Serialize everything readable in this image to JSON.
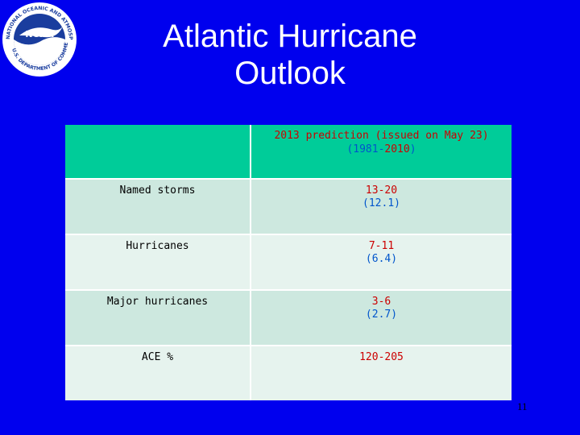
{
  "title": {
    "line1": "Atlantic Hurricane",
    "line2": "Outlook"
  },
  "logo": {
    "name": "noaa-logo",
    "ring_text": "NATIONAL OCEANIC AND ATMOSPHERIC ADMINISTRATION",
    "bottom_text": "U.S. DEPARTMENT OF COMMERCE",
    "center_text": "NOAA"
  },
  "table": {
    "header": {
      "col1": "",
      "col2_line1": "2013 prediction (issued on May 23)",
      "col2_baseline_prefix": "(1981-",
      "col2_baseline_year": "2010",
      "col2_baseline_suffix": ")"
    },
    "rows": [
      {
        "label": "Named storms",
        "range": "13-20",
        "baseline": "(12.1)"
      },
      {
        "label": "Hurricanes",
        "range": "7-11",
        "baseline": "(6.4)"
      },
      {
        "label": "Major hurricanes",
        "range": "3-6",
        "baseline": "(2.7)"
      },
      {
        "label": "ACE %",
        "range": "120-205",
        "baseline": ""
      }
    ]
  },
  "page_number": "11",
  "colors": {
    "background": "#0000ee",
    "header_fill": "#00cc99",
    "row_fill_dark": "#cde8df",
    "row_fill_light": "#e6f3ee",
    "prediction_text": "#cc0000",
    "baseline_text": "#0055cc"
  }
}
